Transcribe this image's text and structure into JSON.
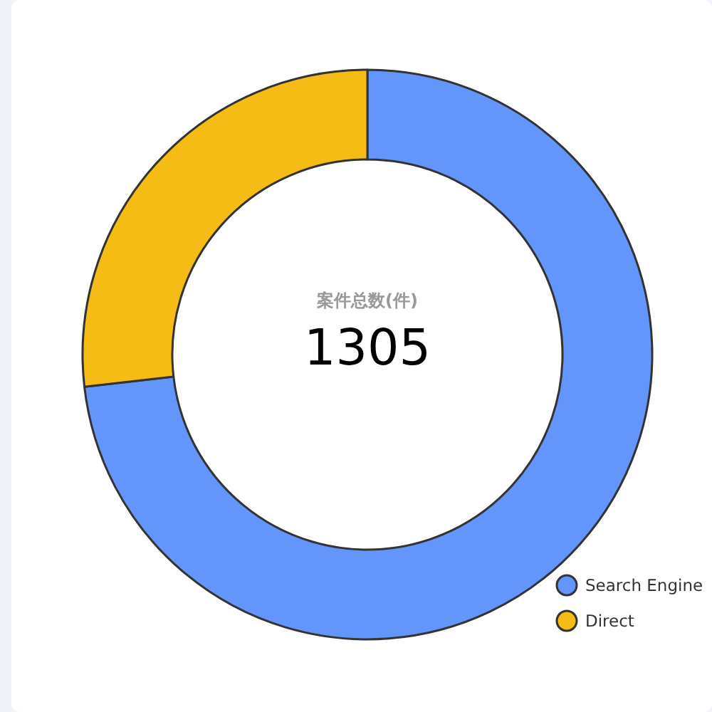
{
  "chart_data": {
    "type": "donut",
    "categories": [
      "Search Engine",
      "Direct"
    ],
    "values": [
      73.2,
      26.8
    ],
    "colors": [
      "#6495fa",
      "#f6bc16"
    ],
    "annotations": [
      "案件总数(件)",
      "1305"
    ],
    "legend": "bottom right"
  }
}
